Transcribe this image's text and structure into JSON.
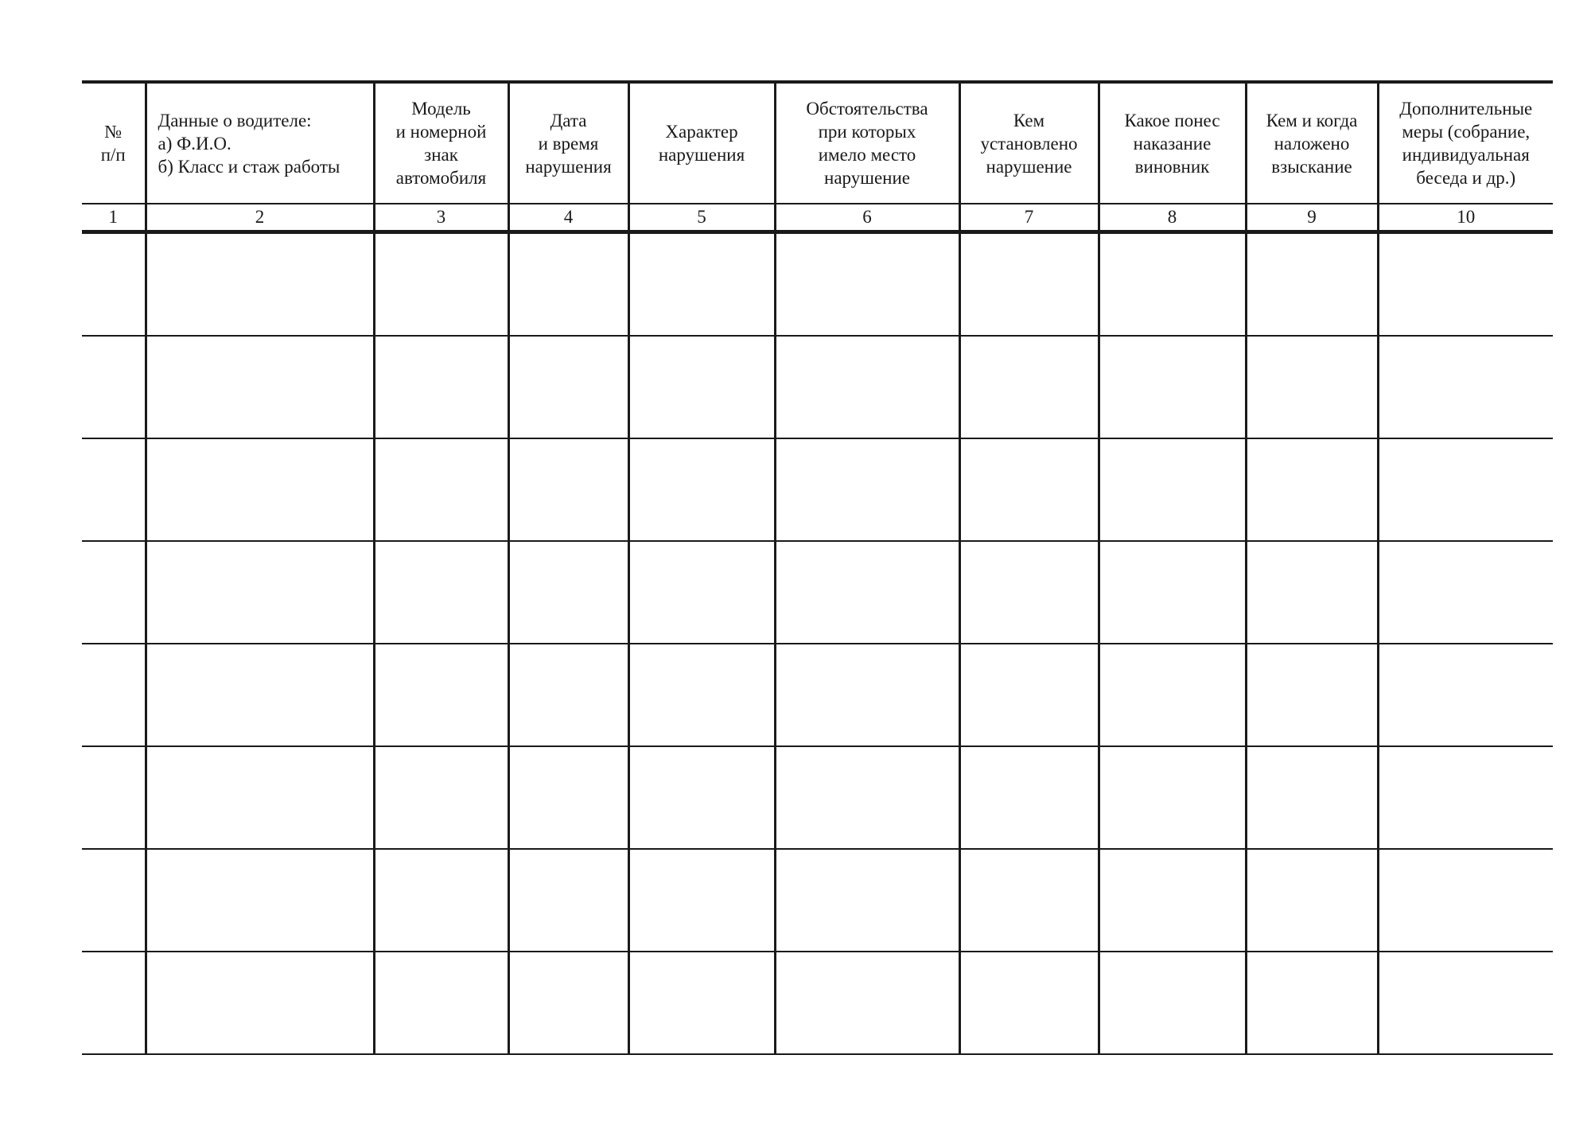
{
  "table": {
    "headers": [
      "№\nп/п",
      "Данные о водителе:\nа) Ф.И.О.\nб) Класс и стаж работы",
      "Модель\nи номерной\nзнак\nавтомобиля",
      "Дата\nи время\nнарушения",
      "Характер\nнарушения",
      "Обстоятельства\nпри которых\nимело место\nнарушение",
      "Кем\nустановлено\nнарушение",
      "Какое понес\nнаказание\nвиновник",
      "Кем и когда\nналожено\nвзыскание",
      "Дополнительные\nмеры (собрание,\nиндивидуальная\nбеседа и др.)"
    ],
    "column_numbers": [
      "1",
      "2",
      "3",
      "4",
      "5",
      "6",
      "7",
      "8",
      "9",
      "10"
    ],
    "empty_rows": 8
  }
}
